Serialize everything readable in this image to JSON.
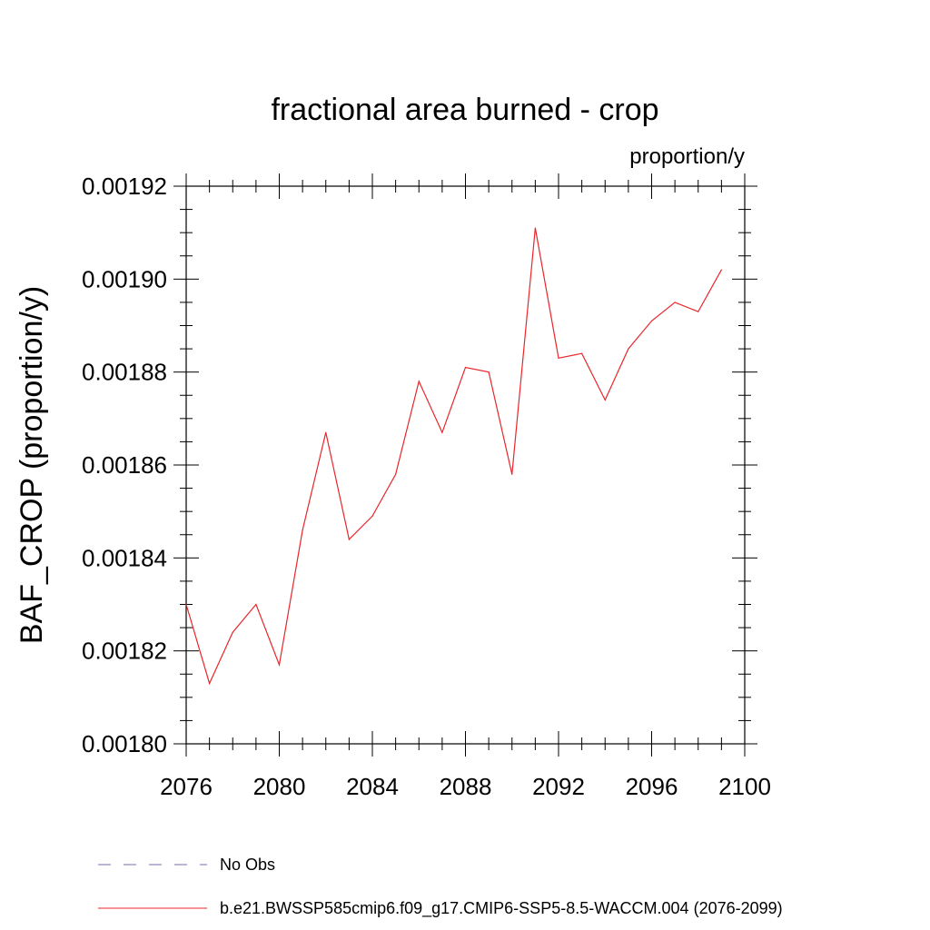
{
  "chart_data": {
    "type": "line",
    "title": "fractional area burned - crop",
    "units": "proportion/y",
    "xlabel": "",
    "ylabel": "BAF_CROP  (proportion/y)",
    "xlim": [
      2076,
      2100
    ],
    "ylim": [
      0.0018,
      0.00192
    ],
    "x_ticks": [
      "2076",
      "2080",
      "2084",
      "2088",
      "2092",
      "2096",
      "2100"
    ],
    "y_ticks": [
      "0.00180",
      "0.00182",
      "0.00184",
      "0.00186",
      "0.00188",
      "0.00190",
      "0.00192"
    ],
    "grid": false,
    "legend_position": "bottom",
    "legend": [
      {
        "label": "No Obs",
        "color": "#7b68b0",
        "style": "dashed"
      },
      {
        "label": "b.e21.BWSSP585cmip6.f09_g17.CMIP6-SSP5-8.5-WACCM.004 (2076-2099)",
        "color": "#e8262b",
        "style": "solid"
      }
    ],
    "series": [
      {
        "name": "b.e21.BWSSP585cmip6.f09_g17.CMIP6-SSP5-8.5-WACCM.004 (2076-2099)",
        "color": "#e8262b",
        "x": [
          2076,
          2077,
          2078,
          2079,
          2080,
          2081,
          2082,
          2083,
          2084,
          2085,
          2086,
          2087,
          2088,
          2089,
          2090,
          2091,
          2092,
          2093,
          2094,
          2095,
          2096,
          2097,
          2098,
          2099
        ],
        "y": [
          0.00183,
          0.001813,
          0.001824,
          0.00183,
          0.001817,
          0.001846,
          0.001867,
          0.001844,
          0.001849,
          0.001858,
          0.001878,
          0.001867,
          0.001881,
          0.00188,
          0.001858,
          0.001911,
          0.001883,
          0.001884,
          0.001874,
          0.001885,
          0.001891,
          0.001895,
          0.001893,
          0.001902
        ]
      }
    ]
  }
}
